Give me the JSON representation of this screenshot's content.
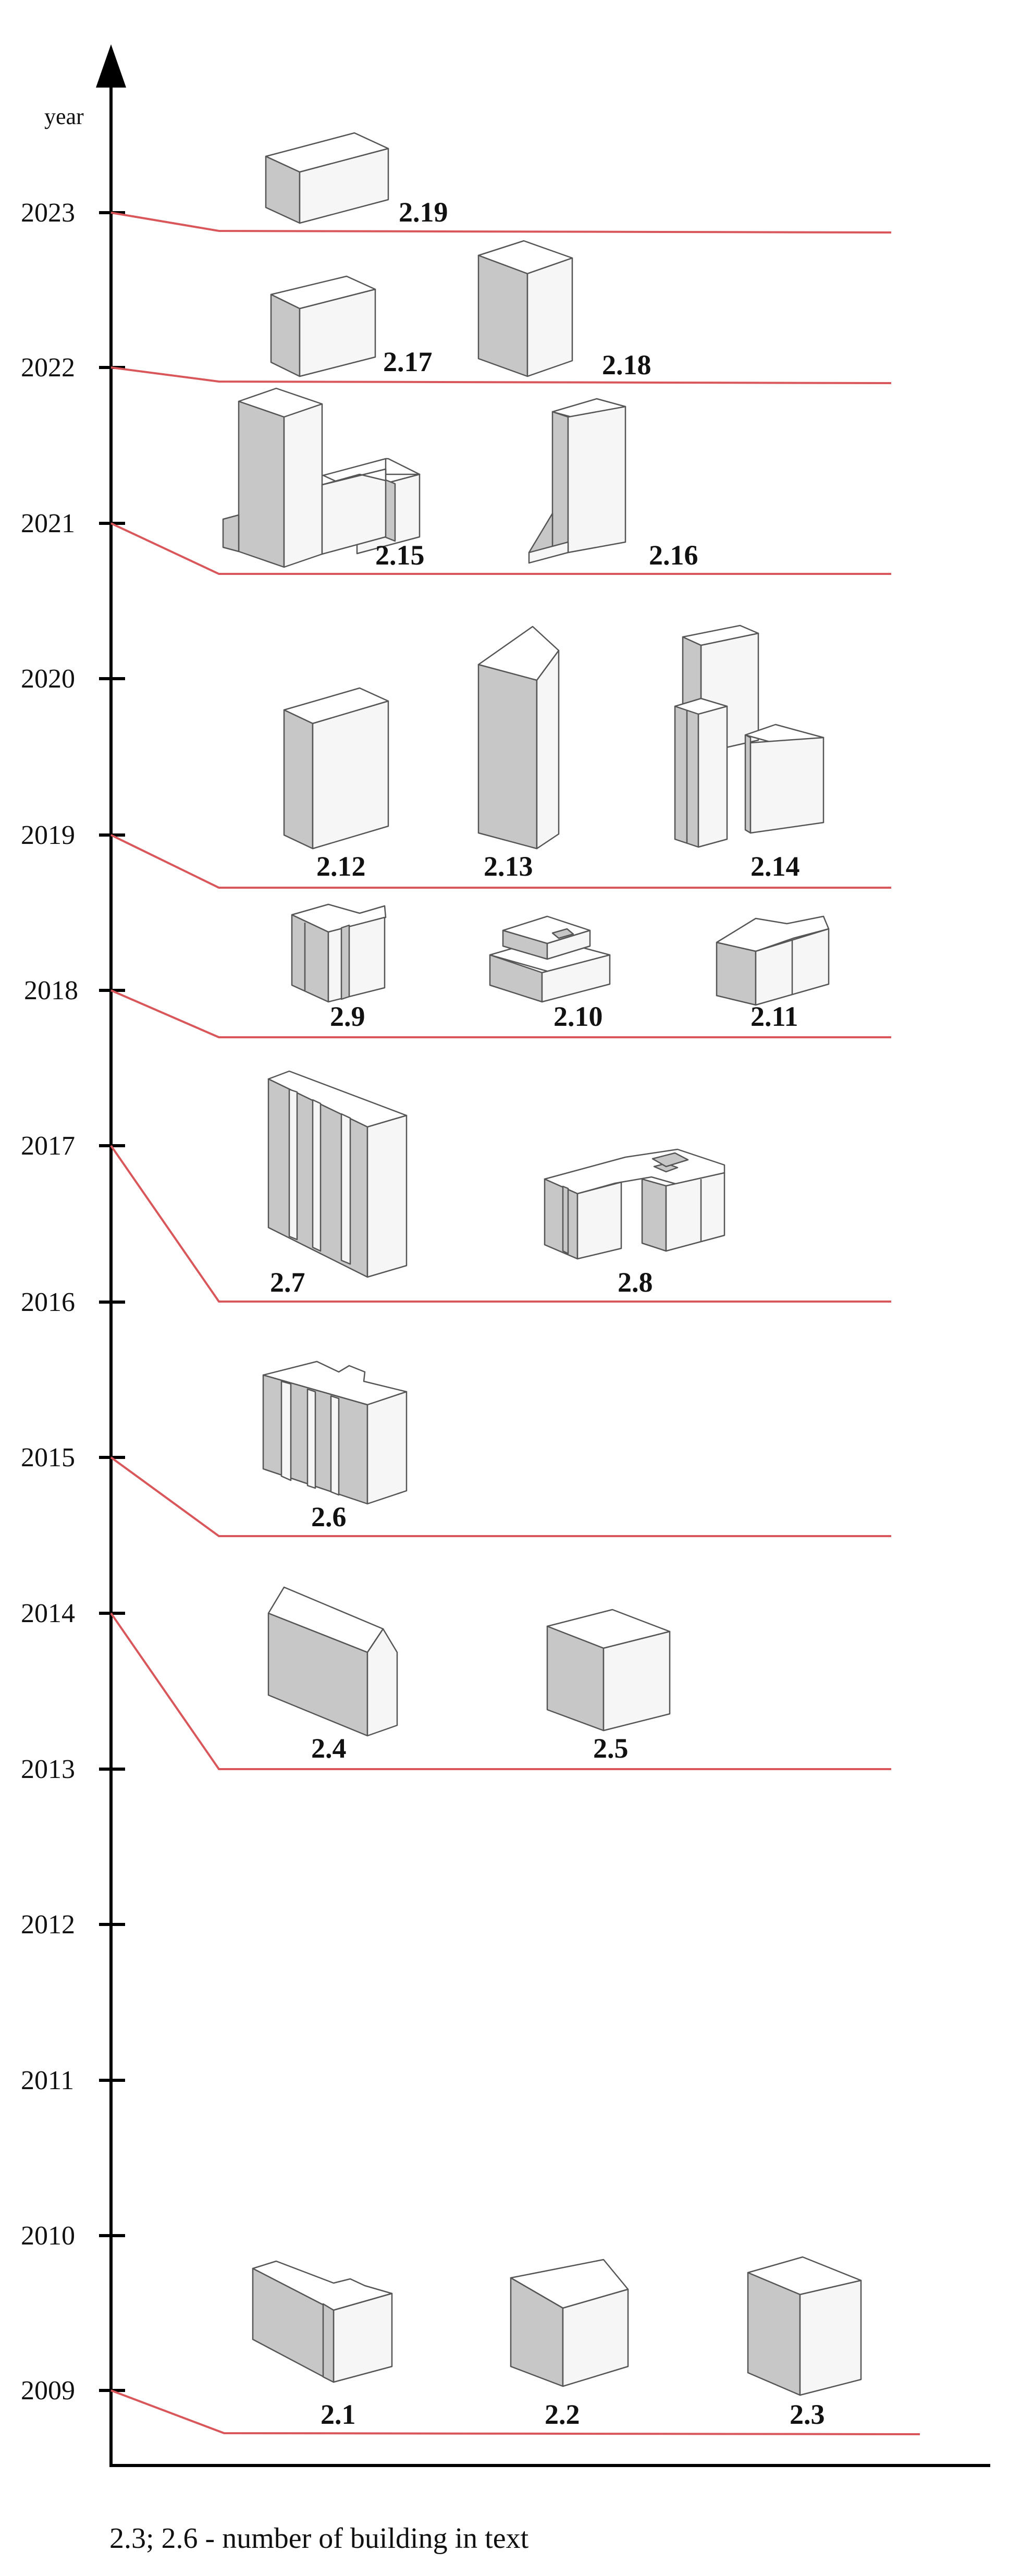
{
  "axis": {
    "unit_label": "year"
  },
  "years": [
    "2023",
    "2022",
    "2021",
    "2020",
    "2019",
    "2018",
    "2017",
    "2016",
    "2015",
    "2014",
    "2013",
    "2012",
    "2011",
    "2010",
    "2009"
  ],
  "groups": [
    {
      "year": "2023",
      "buildings": [
        "2.19"
      ]
    },
    {
      "year": "2022",
      "buildings": [
        "2.17",
        "2.18"
      ]
    },
    {
      "year": "2021",
      "buildings": [
        "2.15",
        "2.16"
      ]
    },
    {
      "year": "2019",
      "buildings": [
        "2.12",
        "2.13",
        "2.14"
      ]
    },
    {
      "year": "2018",
      "buildings": [
        "2.9",
        "2.10",
        "2.11"
      ]
    },
    {
      "year": "2017",
      "buildings": [
        "2.7",
        "2.8"
      ]
    },
    {
      "year": "2015",
      "buildings": [
        "2.6"
      ]
    },
    {
      "year": "2014",
      "buildings": [
        "2.4",
        "2.5"
      ]
    },
    {
      "year": "2009",
      "buildings": [
        "2.1",
        "2.2",
        "2.3"
      ]
    }
  ],
  "footnote": "2.3; 2.6 - number of building in text"
}
